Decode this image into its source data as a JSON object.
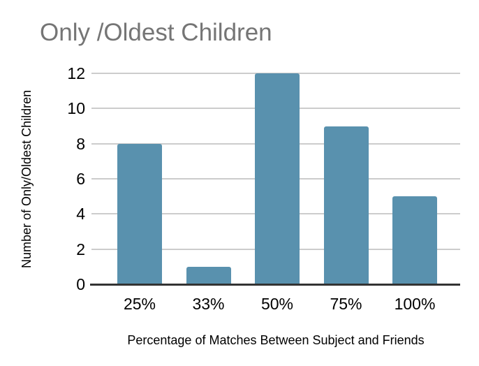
{
  "chart_data": {
    "type": "bar",
    "title": "Only /Oldest Children",
    "xlabel": "Percentage of Matches Between Subject and Friends",
    "ylabel": "Number of Only/Oldest Children",
    "categories": [
      "25%",
      "33%",
      "50%",
      "75%",
      "100%"
    ],
    "values": [
      8,
      1,
      12,
      9,
      5
    ],
    "ylim": [
      0,
      12
    ],
    "yticks": [
      0,
      2,
      4,
      6,
      8,
      10,
      12
    ],
    "grid": "horizontal-only",
    "legend": "none",
    "colors": {
      "bar": "#5991AE",
      "gridline": "#cccccc",
      "axis_line": "#333333",
      "title_text": "#757575",
      "tick_text": "#000000",
      "background": "#ffffff"
    }
  }
}
